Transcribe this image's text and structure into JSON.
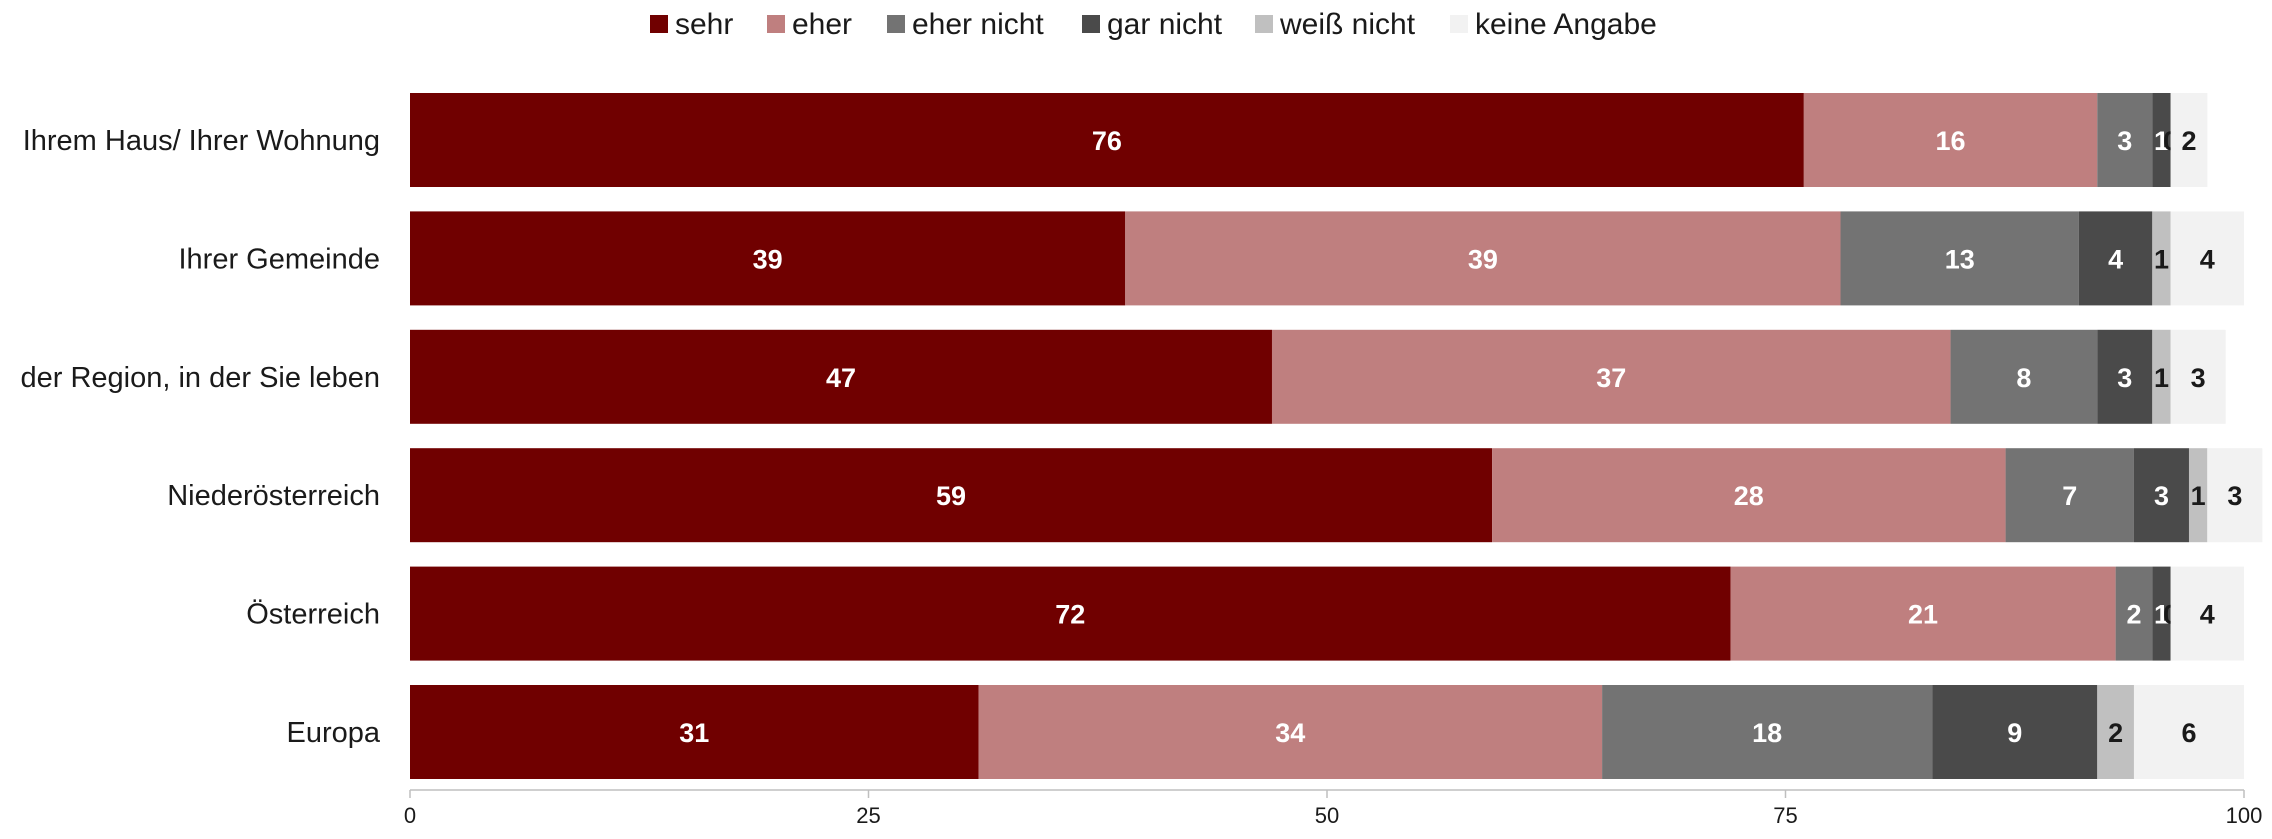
{
  "chart_data": {
    "type": "bar",
    "orientation": "horizontal",
    "stacked": true,
    "categories": [
      "Ihrem Haus/ Ihrer Wohnung",
      "Ihrer Gemeinde",
      "der Region, in der Sie leben",
      "Niederösterreich",
      "Österreich",
      "Europa"
    ],
    "series": [
      {
        "name": "sehr",
        "color": "#700000",
        "values": [
          76,
          39,
          47,
          59,
          72,
          31
        ],
        "label_color": "#ffffff"
      },
      {
        "name": "eher",
        "color": "#bf7f7f",
        "values": [
          16,
          39,
          37,
          28,
          21,
          34
        ],
        "label_color": "#ffffff"
      },
      {
        "name": "eher nicht",
        "color": "#737373",
        "values": [
          3,
          13,
          8,
          7,
          2,
          18
        ],
        "label_color": "#ffffff"
      },
      {
        "name": "gar nicht",
        "color": "#4a4a4a",
        "values": [
          1,
          4,
          3,
          3,
          1,
          9
        ],
        "label_color": "#ffffff"
      },
      {
        "name": "weiß nicht",
        "color": "#c0c0c0",
        "values": [
          0,
          1,
          1,
          1,
          0,
          2
        ],
        "label_color": "#1a1a1a"
      },
      {
        "name": "keine Angabe",
        "color": "#f2f2f2",
        "values": [
          2,
          4,
          3,
          3,
          4,
          6
        ],
        "label_color": "#1a1a1a"
      }
    ],
    "x_ticks": [
      0,
      25,
      50,
      75,
      100
    ],
    "xlim": [
      0,
      100
    ],
    "legend_position": "top",
    "grid": false
  }
}
